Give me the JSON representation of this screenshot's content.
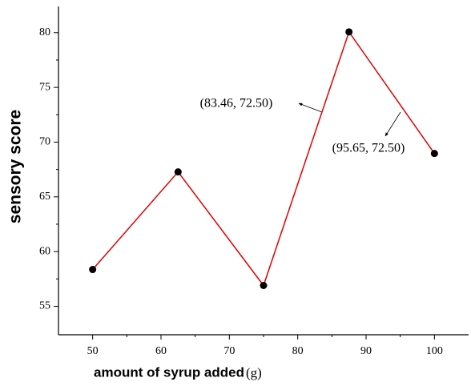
{
  "chart_data": {
    "type": "line",
    "x_label": "amount of syrup added",
    "x_unit": "(g)",
    "y_label": "sensory score",
    "x": [
      50,
      62.5,
      75,
      87.5,
      100
    ],
    "series": [
      {
        "color": "#e00000",
        "values": [
          58.36,
          67.28,
          56.9,
          80.07,
          68.96
        ]
      }
    ],
    "xlim": [
      45,
      105
    ],
    "xticks": [
      50,
      60,
      70,
      80,
      90,
      100
    ],
    "ylim": [
      52.4,
      82.4
    ],
    "yticks": [
      55,
      60,
      65,
      70,
      75,
      80
    ],
    "annotations": [
      "(83.46, 72.50)",
      "(95.65, 72.50)"
    ]
  }
}
